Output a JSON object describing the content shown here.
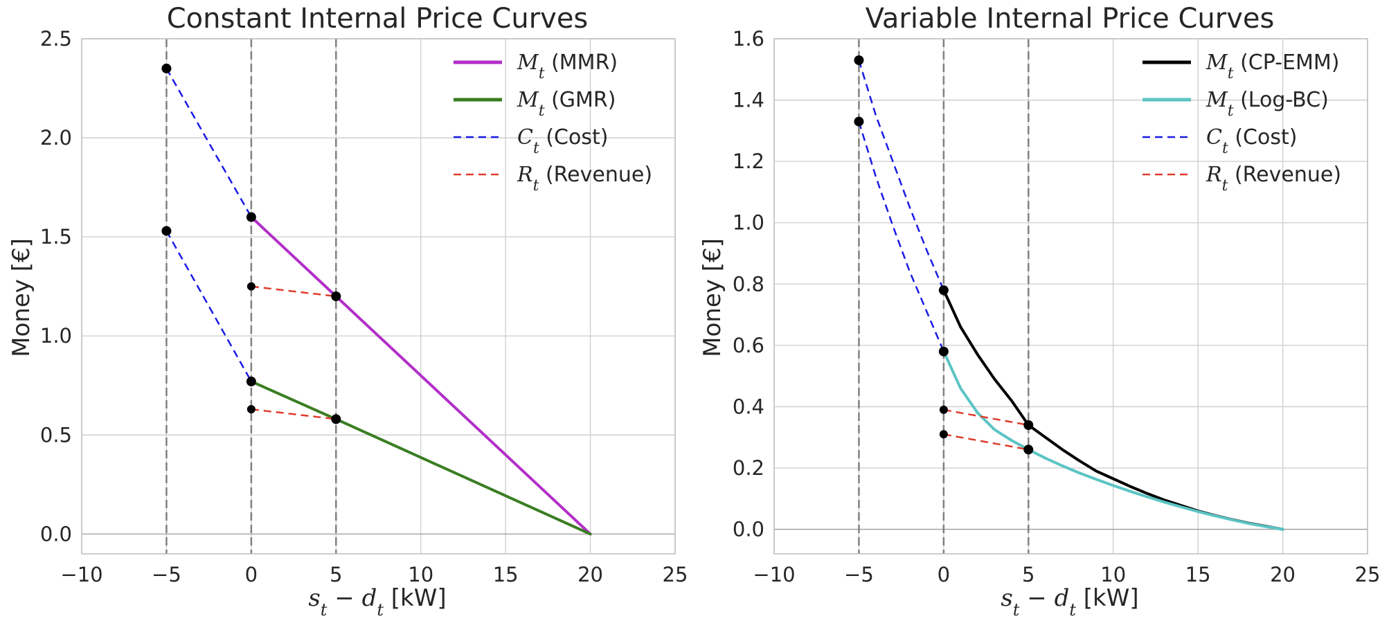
{
  "colors": {
    "grid": "#cccccc",
    "frame": "#bdbdbd",
    "vline": "#808080",
    "mmr": "#b22fc8",
    "gmr": "#3a7d22",
    "cpemm": "#000000",
    "logbc": "#5cc4c4",
    "cost": "#1a1ae6",
    "revenue": "#e03c2c",
    "marker": "#000000"
  },
  "chart_data": [
    {
      "type": "line",
      "title": "Constant Internal Price Curves",
      "xlabel": "s_t − d_t [kW]",
      "ylabel": "Money [€]",
      "xlim": [
        -10,
        25
      ],
      "ylim": [
        -0.1,
        2.5
      ],
      "xticks": [
        -10,
        -5,
        0,
        5,
        10,
        15,
        20,
        25
      ],
      "xtick_labels": [
        "−10",
        "−5",
        "0",
        "5",
        "10",
        "15",
        "20",
        "25"
      ],
      "yticks": [
        0,
        0.5,
        1,
        1.5,
        2,
        2.5
      ],
      "ytick_labels": [
        "0.0",
        "0.5",
        "1.0",
        "1.5",
        "2.0",
        "2.5"
      ],
      "vlines": [
        -5,
        0,
        5
      ],
      "grid": true,
      "legend_position": "top-right",
      "series": [
        {
          "name": "M_t (MMR)",
          "legend_sym": "M",
          "legend_sub": "t",
          "legend_rest": " (MMR)",
          "color_key": "mmr",
          "style": "solid",
          "width": 4,
          "x": [
            0,
            5,
            20
          ],
          "y": [
            1.6,
            1.2,
            0.0
          ]
        },
        {
          "name": "M_t (GMR)",
          "legend_sym": "M",
          "legend_sub": "t",
          "legend_rest": " (GMR)",
          "color_key": "gmr",
          "style": "solid",
          "width": 4,
          "x": [
            0,
            5,
            20
          ],
          "y": [
            0.77,
            0.58,
            0.0
          ]
        },
        {
          "name": "C_t (Cost)",
          "legend_sym": "C",
          "legend_sub": "t",
          "legend_rest": " (Cost)",
          "color_key": "cost",
          "style": "dashed",
          "width": 2.5,
          "segments": [
            {
              "x": [
                -5,
                0
              ],
              "y": [
                2.35,
                1.6
              ]
            },
            {
              "x": [
                -5,
                0
              ],
              "y": [
                1.53,
                0.77
              ]
            }
          ]
        },
        {
          "name": "R_t (Revenue)",
          "legend_sym": "R",
          "legend_sub": "t",
          "legend_rest": " (Revenue)",
          "color_key": "revenue",
          "style": "dashed",
          "width": 2.5,
          "segments": [
            {
              "x": [
                0,
                5
              ],
              "y": [
                1.25,
                1.2
              ]
            },
            {
              "x": [
                0,
                5
              ],
              "y": [
                0.63,
                0.58
              ]
            }
          ]
        }
      ],
      "points": [
        {
          "x": -5,
          "y": 2.35,
          "size": "large"
        },
        {
          "x": -5,
          "y": 1.53,
          "size": "large"
        },
        {
          "x": 0,
          "y": 1.6,
          "size": "large"
        },
        {
          "x": 0,
          "y": 0.77,
          "size": "large"
        },
        {
          "x": 5,
          "y": 1.2,
          "size": "large"
        },
        {
          "x": 5,
          "y": 0.58,
          "size": "large"
        },
        {
          "x": 0,
          "y": 1.25,
          "size": "small"
        },
        {
          "x": 0,
          "y": 0.63,
          "size": "small"
        }
      ]
    },
    {
      "type": "line",
      "title": "Variable Internal Price Curves",
      "xlabel": "s_t − d_t [kW]",
      "ylabel": "Money [€]",
      "xlim": [
        -10,
        25
      ],
      "ylim": [
        -0.08,
        1.6
      ],
      "xticks": [
        -10,
        -5,
        0,
        5,
        10,
        15,
        20,
        25
      ],
      "xtick_labels": [
        "−10",
        "−5",
        "0",
        "5",
        "10",
        "15",
        "20",
        "25"
      ],
      "yticks": [
        0,
        0.2,
        0.4,
        0.6,
        0.8,
        1.0,
        1.2,
        1.4,
        1.6
      ],
      "ytick_labels": [
        "0.0",
        "0.2",
        "0.4",
        "0.6",
        "0.8",
        "1.0",
        "1.2",
        "1.4",
        "1.6"
      ],
      "vlines": [
        -5,
        0,
        5
      ],
      "grid": true,
      "legend_position": "top-right",
      "series": [
        {
          "name": "M_t (CP-EMM)",
          "legend_sym": "M",
          "legend_sub": "t",
          "legend_rest": " (CP-EMM)",
          "color_key": "cpemm",
          "style": "solid",
          "width": 4,
          "x": [
            0,
            1,
            2,
            3,
            4,
            5,
            6,
            7,
            8,
            9,
            10,
            11,
            12,
            13,
            14,
            15,
            16,
            17,
            18,
            19,
            20
          ],
          "y": [
            0.78,
            0.66,
            0.57,
            0.49,
            0.42,
            0.34,
            0.3,
            0.26,
            0.224,
            0.19,
            0.165,
            0.14,
            0.117,
            0.096,
            0.078,
            0.06,
            0.045,
            0.032,
            0.02,
            0.01,
            0.0
          ]
        },
        {
          "name": "M_t (Log-BC)",
          "legend_sym": "M",
          "legend_sub": "t",
          "legend_rest": " (Log-BC)",
          "color_key": "logbc",
          "style": "solid",
          "width": 4,
          "x": [
            0,
            1,
            2,
            3,
            4,
            5,
            6,
            7,
            8,
            9,
            10,
            11,
            12,
            13,
            14,
            15,
            16,
            17,
            18,
            19,
            20
          ],
          "y": [
            0.58,
            0.46,
            0.38,
            0.325,
            0.29,
            0.26,
            0.232,
            0.207,
            0.184,
            0.163,
            0.143,
            0.124,
            0.106,
            0.089,
            0.073,
            0.058,
            0.044,
            0.031,
            0.019,
            0.009,
            0.0
          ]
        },
        {
          "name": "C_t (Cost)",
          "legend_sym": "C",
          "legend_sub": "t",
          "legend_rest": " (Cost)",
          "color_key": "cost",
          "style": "dashed",
          "width": 2.5,
          "segments": [
            {
              "x": [
                -5,
                -4,
                -3,
                -2,
                -1,
                0
              ],
              "y": [
                1.53,
                1.35,
                1.2,
                1.05,
                0.91,
                0.78
              ]
            },
            {
              "x": [
                -5,
                -4,
                -3,
                -2,
                -1,
                0
              ],
              "y": [
                1.33,
                1.15,
                0.99,
                0.84,
                0.71,
                0.58
              ]
            }
          ]
        },
        {
          "name": "R_t (Revenue)",
          "legend_sym": "R",
          "legend_sub": "t",
          "legend_rest": " (Revenue)",
          "color_key": "revenue",
          "style": "dashed",
          "width": 2.5,
          "segments": [
            {
              "x": [
                0,
                5
              ],
              "y": [
                0.39,
                0.34
              ]
            },
            {
              "x": [
                0,
                5
              ],
              "y": [
                0.31,
                0.26
              ]
            }
          ]
        }
      ],
      "points": [
        {
          "x": -5,
          "y": 1.53,
          "size": "large"
        },
        {
          "x": -5,
          "y": 1.33,
          "size": "large"
        },
        {
          "x": 0,
          "y": 0.78,
          "size": "large"
        },
        {
          "x": 0,
          "y": 0.58,
          "size": "large"
        },
        {
          "x": 5,
          "y": 0.34,
          "size": "large"
        },
        {
          "x": 5,
          "y": 0.26,
          "size": "large"
        },
        {
          "x": 0,
          "y": 0.39,
          "size": "small"
        },
        {
          "x": 0,
          "y": 0.31,
          "size": "small"
        }
      ]
    }
  ]
}
